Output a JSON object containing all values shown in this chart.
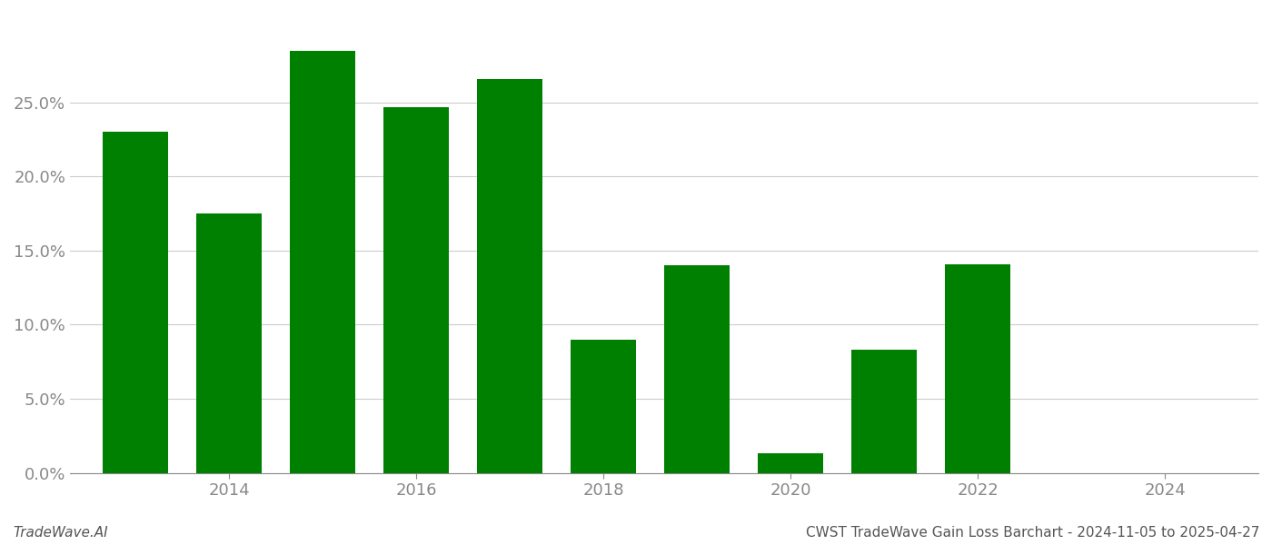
{
  "years": [
    2013,
    2014,
    2015,
    2016,
    2017,
    2018,
    2019,
    2020,
    2021,
    2022,
    2023
  ],
  "values": [
    0.23,
    0.175,
    0.285,
    0.247,
    0.266,
    0.09,
    0.14,
    0.013,
    0.083,
    0.141,
    0.0
  ],
  "bar_color": "#008000",
  "xlim": [
    2012.3,
    2025.0
  ],
  "ylim": [
    0.0,
    0.31
  ],
  "yticks": [
    0.0,
    0.05,
    0.1,
    0.15,
    0.2,
    0.25
  ],
  "xtick_years": [
    2014,
    2016,
    2018,
    2020,
    2022,
    2024
  ],
  "footer_left": "TradeWave.AI",
  "footer_right": "CWST TradeWave Gain Loss Barchart - 2024-11-05 to 2025-04-27",
  "background_color": "#ffffff",
  "grid_color": "#cccccc",
  "tick_label_color": "#888888",
  "bar_width": 0.7
}
